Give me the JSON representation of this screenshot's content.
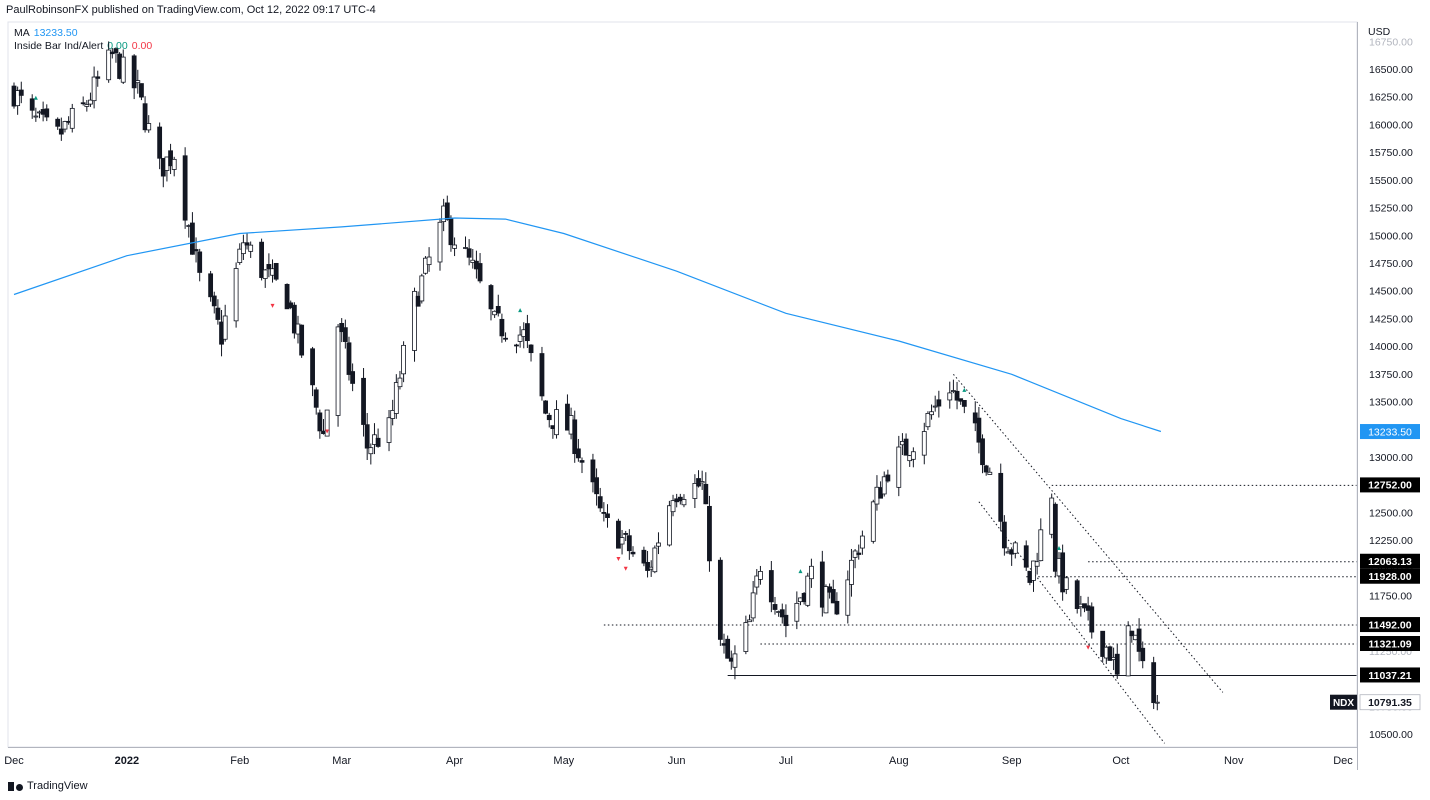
{
  "header": {
    "publisher": "PaulRobinsonFX published on TradingView.com, Oct 12, 2022 09:17 UTC-4"
  },
  "legend": {
    "ma_label": "MA",
    "ma_value": "13233.50",
    "indicator_label": "Inside Bar Ind/Alert",
    "indicator_value_1": "0.00",
    "indicator_value_2": "0.00"
  },
  "footer": {
    "brand": "TradingView"
  },
  "chart_data": {
    "type": "candlestick",
    "symbol": "NDX",
    "currency_label": "USD",
    "ylim": [
      10400,
      16850
    ],
    "y_ticks": [
      "10500.00",
      "10750.00",
      "11000.00",
      "11250.00",
      "11500.00",
      "11750.00",
      "12000.00",
      "12250.00",
      "12500.00",
      "12750.00",
      "13000.00",
      "13250.00",
      "13500.00",
      "13750.00",
      "14000.00",
      "14250.00",
      "14500.00",
      "14750.00",
      "15000.00",
      "15250.00",
      "15500.00",
      "15750.00",
      "16000.00",
      "16250.00",
      "16500.00",
      "16750.00"
    ],
    "x_labels": [
      {
        "label": "Dec",
        "date": "2021-12-01"
      },
      {
        "label": "2022",
        "date": "2022-01-01"
      },
      {
        "label": "Feb",
        "date": "2022-02-01"
      },
      {
        "label": "Mar",
        "date": "2022-03-01"
      },
      {
        "label": "Apr",
        "date": "2022-04-01"
      },
      {
        "label": "May",
        "date": "2022-05-01"
      },
      {
        "label": "Jun",
        "date": "2022-06-01"
      },
      {
        "label": "Jul",
        "date": "2022-07-01"
      },
      {
        "label": "Aug",
        "date": "2022-08-01"
      },
      {
        "label": "Sep",
        "date": "2022-09-01"
      },
      {
        "label": "Oct",
        "date": "2022-10-01"
      },
      {
        "label": "Nov",
        "date": "2022-11-01"
      },
      {
        "label": "Dec",
        "date": "2022-12-01"
      }
    ],
    "price_anchors": [
      [
        "2021-12-01",
        16300
      ],
      [
        "2021-12-06",
        16050
      ],
      [
        "2021-12-13",
        15900
      ],
      [
        "2021-12-20",
        16150
      ],
      [
        "2021-12-28",
        16620
      ],
      [
        "2022-01-04",
        16300
      ],
      [
        "2022-01-10",
        15600
      ],
      [
        "2022-01-14",
        15750
      ],
      [
        "2022-01-21",
        14600
      ],
      [
        "2022-01-27",
        14100
      ],
      [
        "2022-02-02",
        14950
      ],
      [
        "2022-02-08",
        14650
      ],
      [
        "2022-02-14",
        14450
      ],
      [
        "2022-02-24",
        13200
      ],
      [
        "2022-02-28",
        14200
      ],
      [
        "2022-03-08",
        13100
      ],
      [
        "2022-03-14",
        13250
      ],
      [
        "2022-03-21",
        14400
      ],
      [
        "2022-03-29",
        15150
      ],
      [
        "2022-04-06",
        14700
      ],
      [
        "2022-04-12",
        14200
      ],
      [
        "2022-04-20",
        14100
      ],
      [
        "2022-04-26",
        13400
      ],
      [
        "2022-05-03",
        13250
      ],
      [
        "2022-05-12",
        12400
      ],
      [
        "2022-05-16",
        12300
      ],
      [
        "2022-05-24",
        11950
      ],
      [
        "2022-05-31",
        12700
      ],
      [
        "2022-06-08",
        12750
      ],
      [
        "2022-06-13",
        11300
      ],
      [
        "2022-06-16",
        11100
      ],
      [
        "2022-06-21",
        11500
      ],
      [
        "2022-06-24",
        12050
      ],
      [
        "2022-07-01",
        11500
      ],
      [
        "2022-07-08",
        11950
      ],
      [
        "2022-07-14",
        11600
      ],
      [
        "2022-07-22",
        12300
      ],
      [
        "2022-07-29",
        12900
      ],
      [
        "2022-08-05",
        13150
      ],
      [
        "2022-08-15",
        13650
      ],
      [
        "2022-08-22",
        13200
      ],
      [
        "2022-08-26",
        12900
      ],
      [
        "2022-08-30",
        12300
      ],
      [
        "2022-09-06",
        11900
      ],
      [
        "2022-09-12",
        12700
      ],
      [
        "2022-09-13",
        12050
      ],
      [
        "2022-09-16",
        11800
      ],
      [
        "2022-09-23",
        11450
      ],
      [
        "2022-09-28",
        11250
      ],
      [
        "2022-09-30",
        11000
      ],
      [
        "2022-10-04",
        11500
      ],
      [
        "2022-10-07",
        11050
      ],
      [
        "2022-10-10",
        10900
      ],
      [
        "2022-10-11",
        10791
      ]
    ],
    "inside_bar_markers": [
      {
        "date": "2021-12-07",
        "direction": "up"
      },
      {
        "date": "2022-02-10",
        "direction": "down"
      },
      {
        "date": "2022-02-25",
        "direction": "down"
      },
      {
        "date": "2022-04-19",
        "direction": "up"
      },
      {
        "date": "2022-05-16",
        "direction": "down"
      },
      {
        "date": "2022-05-18",
        "direction": "down"
      },
      {
        "date": "2022-07-05",
        "direction": "up"
      },
      {
        "date": "2022-08-19",
        "direction": "up"
      },
      {
        "date": "2022-09-14",
        "direction": "up"
      },
      {
        "date": "2022-09-22",
        "direction": "down"
      }
    ],
    "moving_average": {
      "name": "MA",
      "color": "#2196f3",
      "points": [
        [
          "2021-12-01",
          14470
        ],
        [
          "2022-01-01",
          14820
        ],
        [
          "2022-02-01",
          15020
        ],
        [
          "2022-03-01",
          15080
        ],
        [
          "2022-04-01",
          15160
        ],
        [
          "2022-04-15",
          15150
        ],
        [
          "2022-05-01",
          15020
        ],
        [
          "2022-06-01",
          14680
        ],
        [
          "2022-07-01",
          14300
        ],
        [
          "2022-08-01",
          14050
        ],
        [
          "2022-09-01",
          13750
        ],
        [
          "2022-10-01",
          13350
        ],
        [
          "2022-10-12",
          13233.5
        ]
      ]
    },
    "horizontal_levels": [
      {
        "value": 12752.0,
        "label": "12752.00",
        "from": "2022-09-12",
        "style": "dotted"
      },
      {
        "value": 12063.13,
        "label": "12063.13",
        "from": "2022-09-22",
        "style": "dotted"
      },
      {
        "value": 11928.0,
        "label": "11928.00",
        "from": "2022-09-05",
        "style": "dotted"
      },
      {
        "value": 11492.0,
        "label": "11492.00",
        "from": "2022-05-12",
        "style": "dotted"
      },
      {
        "value": 11321.09,
        "label": "11321.09",
        "from": "2022-06-24",
        "style": "dotted"
      },
      {
        "value": 11037.21,
        "label": "11037.21",
        "from": "2022-06-15",
        "style": "solid"
      }
    ],
    "channel_lines": [
      {
        "from": [
          "2022-08-16",
          13750
        ],
        "to": [
          "2022-10-29",
          10880
        ]
      },
      {
        "from": [
          "2022-08-23",
          12600
        ],
        "to": [
          "2022-10-13",
          10420
        ]
      }
    ],
    "price_labels": [
      {
        "value": 13233.5,
        "label": "13233.50",
        "color": "#2196f3"
      },
      {
        "value": 10791.35,
        "label": "10791.35",
        "tag": "NDX",
        "color": "#131722"
      }
    ]
  }
}
